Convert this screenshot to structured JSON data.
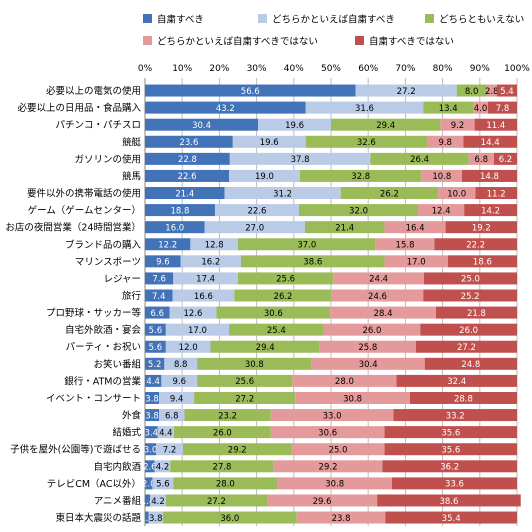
{
  "chart_data": {
    "type": "bar",
    "orientation": "horizontal",
    "stacked": true,
    "title": "",
    "xlabel": "",
    "ylabel": "",
    "xlim": [
      0,
      100
    ],
    "x_ticks": [
      "0%",
      "10%",
      "20%",
      "30%",
      "40%",
      "50%",
      "60%",
      "70%",
      "80%",
      "90%",
      "100%"
    ],
    "grid": true,
    "legend_position": "top",
    "categories": [
      "必要以上の電気の使用",
      "必要以上の日用品・食品購入",
      "パチンコ・パチスロ",
      "競艇",
      "ガソリンの使用",
      "競馬",
      "要件以外の携帯電話の使用",
      "ゲーム（ゲームセンター）",
      "お店の夜間営業（24時間営業）",
      "ブランド品の購入",
      "マリンスポーツ",
      "レジャー",
      "旅行",
      "プロ野球・サッカー等",
      "自宅外飲酒・宴会",
      "パーティ・お祝い",
      "お笑い番組",
      "銀行・ATMの営業",
      "イベント・コンサート",
      "外食",
      "結婚式",
      "子供を屋外(公園等)で遊ばせる",
      "自宅内飲酒",
      "テレビCM（AC以外）",
      "アニメ番組",
      "東日本大震災の話題"
    ],
    "series": [
      {
        "name": "自粛すべき",
        "color": "#4272b8",
        "values": [
          56.6,
          43.2,
          30.4,
          23.6,
          22.8,
          22.6,
          21.4,
          18.8,
          16.0,
          12.2,
          9.6,
          7.6,
          7.4,
          6.6,
          5.6,
          5.6,
          5.2,
          4.4,
          3.8,
          3.8,
          3.4,
          3.0,
          2.6,
          2.0,
          1.4,
          1.0
        ]
      },
      {
        "name": "どちらかといえば自粛すべき",
        "color": "#b9cbe6",
        "values": [
          27.2,
          31.6,
          19.6,
          19.6,
          37.8,
          19.0,
          31.2,
          22.6,
          27.0,
          12.8,
          16.2,
          17.4,
          16.6,
          12.6,
          17.0,
          12.0,
          8.8,
          9.6,
          9.4,
          6.8,
          4.4,
          7.2,
          4.2,
          5.6,
          4.2,
          3.8
        ]
      },
      {
        "name": "どちらともいえない",
        "color": "#9bbb59",
        "values": [
          8.0,
          13.4,
          29.4,
          32.6,
          26.4,
          32.8,
          26.2,
          32.0,
          21.4,
          37.0,
          38.6,
          25.6,
          26.2,
          30.6,
          25.4,
          29.4,
          30.8,
          25.6,
          27.2,
          23.2,
          26.0,
          29.2,
          27.8,
          28.0,
          27.2,
          36.0
        ]
      },
      {
        "name": "どちらかといえば自粛すべきではない",
        "color": "#e49a9a",
        "values": [
          2.8,
          4.0,
          9.2,
          9.8,
          6.8,
          10.8,
          10.0,
          12.4,
          16.4,
          15.8,
          17.0,
          24.4,
          24.6,
          28.4,
          26.0,
          25.8,
          30.4,
          28.0,
          30.8,
          33.0,
          30.6,
          25.0,
          29.2,
          30.8,
          29.6,
          23.8
        ]
      },
      {
        "name": "自粛すべきではない",
        "color": "#c0504d",
        "values": [
          5.4,
          7.8,
          11.4,
          14.4,
          6.2,
          14.8,
          11.2,
          14.2,
          19.2,
          22.2,
          18.6,
          25.0,
          25.2,
          21.8,
          26.0,
          27.2,
          24.8,
          32.4,
          28.8,
          33.2,
          35.6,
          35.6,
          36.2,
          33.6,
          38.6,
          35.4
        ]
      }
    ],
    "label_colors": {
      "on_dark": "#ffffff",
      "on_light": "#000000"
    }
  }
}
